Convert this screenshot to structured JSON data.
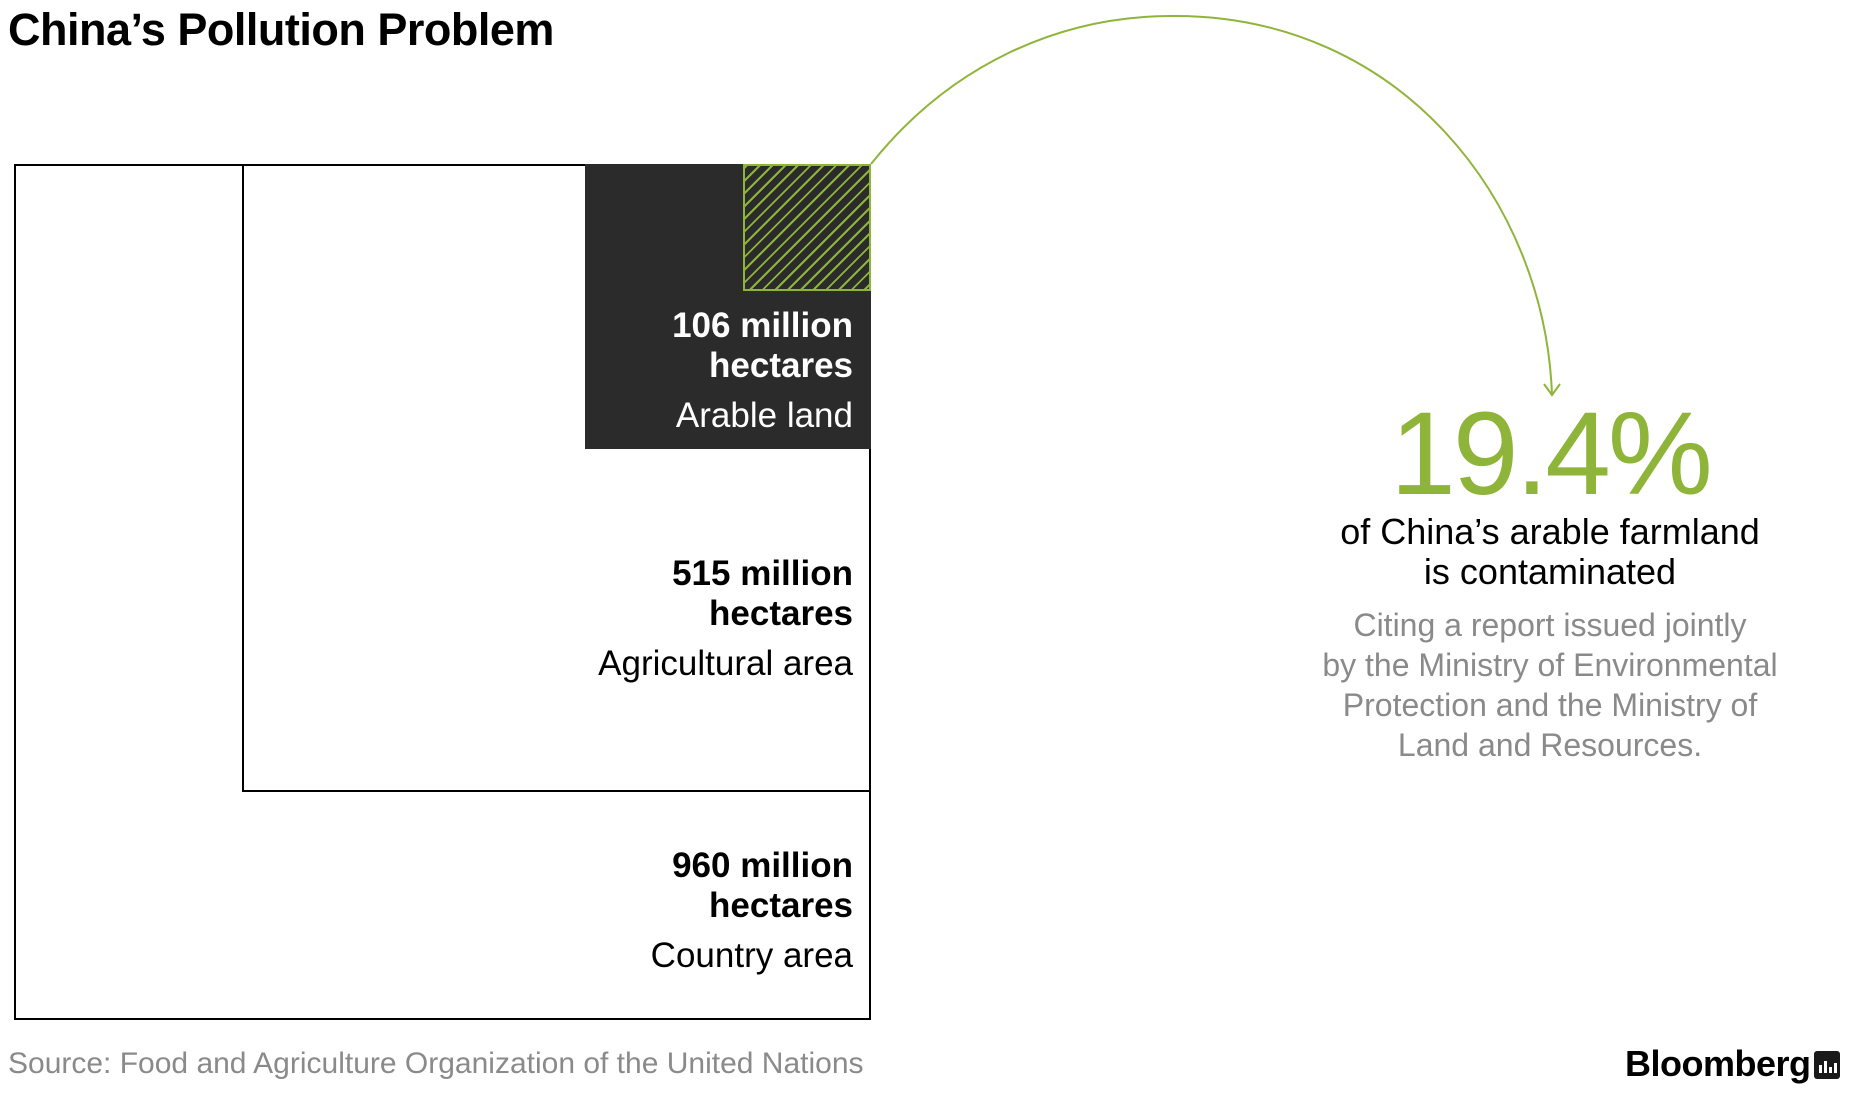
{
  "title": "China’s Pollution Problem",
  "colors": {
    "accent": "#8fb43a",
    "arable_fill": "#2b2b2b",
    "note_gray": "#8a8a8a"
  },
  "chart_data": {
    "type": "area-proportion (nested squares)",
    "unit": "million hectares",
    "series": [
      {
        "name": "Country area",
        "value": 960,
        "label_value": "960 million hectares"
      },
      {
        "name": "Agricultural area",
        "value": 515,
        "label_value": "515 million hectares"
      },
      {
        "name": "Arable land",
        "value": 106,
        "label_value": "106 million hectares"
      }
    ],
    "highlight": {
      "name": "contaminated arable farmland",
      "percent": 19.4,
      "of": "Arable land"
    }
  },
  "boxes": {
    "arable": {
      "value_line1": "106 million",
      "value_line2": "hectares",
      "category": "Arable land"
    },
    "agri": {
      "value_line1": "515 million",
      "value_line2": "hectares",
      "category": "Agricultural area"
    },
    "country": {
      "value_line1": "960 million",
      "value_line2": "hectares",
      "category": "Country area"
    }
  },
  "callout": {
    "percent": "19.4%",
    "desc_line1": "of China’s arable farmland",
    "desc_line2": "is contaminated",
    "note_line1": "Citing a report issued jointly",
    "note_line2": "by the Ministry of Environmental",
    "note_line3": "Protection and the Ministry of",
    "note_line4": "Land and Resources."
  },
  "source": "Source: Food and Agriculture Organization of the United Nations",
  "brand": "Bloomberg",
  "brand_icon": "bloomberg-chart-icon"
}
